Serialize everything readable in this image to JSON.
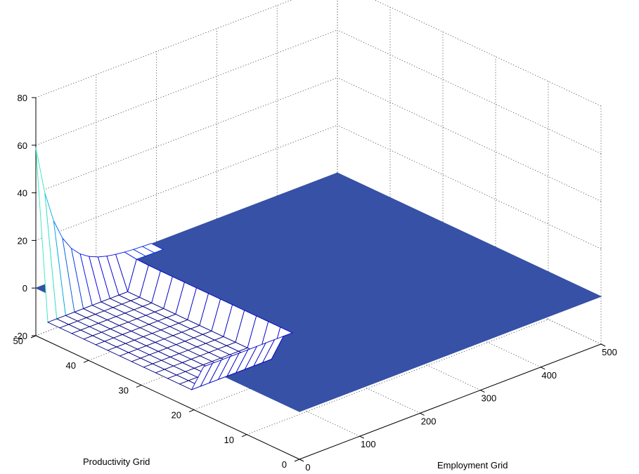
{
  "chart_data": {
    "type": "surface-mesh",
    "title": "",
    "xlabel": "Employment Grid",
    "ylabel": "Productivity Grid",
    "zlabel": "",
    "x_ticks": [
      "0",
      "100",
      "200",
      "300",
      "400",
      "500"
    ],
    "y_ticks": [
      "0",
      "10",
      "20",
      "30",
      "40",
      "50"
    ],
    "z_ticks": [
      "-20",
      "0",
      "20",
      "40",
      "60",
      "80"
    ],
    "xlim": [
      0,
      500
    ],
    "ylim": [
      0,
      50
    ],
    "zlim": [
      -20,
      80
    ],
    "grid": true,
    "colormap": "jet",
    "surface": {
      "x_range": [
        0,
        500
      ],
      "y_range": [
        0,
        50
      ],
      "nx": 34,
      "ny": 22,
      "peak_value": 59,
      "floor_value": 0,
      "plateau_value": -12,
      "decay_scale_x": 35,
      "edge_y": 50,
      "edge_decay_scale": 1.6,
      "plateau_region": {
        "x_max": 140,
        "y_min": 20
      }
    },
    "colors": {
      "background": "#ffffff",
      "axes_face": "#ffffff",
      "floor_color": "#3651a6"
    }
  }
}
